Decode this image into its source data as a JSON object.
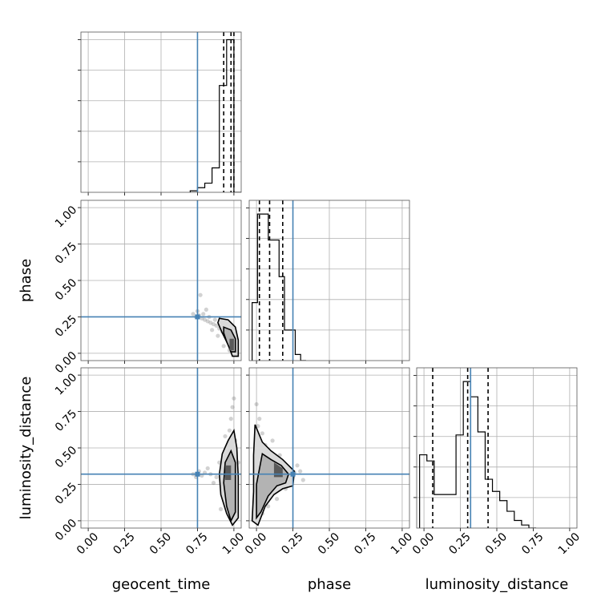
{
  "chart_data": {
    "type": "corner",
    "parameters": [
      "geocent_time",
      "phase",
      "luminosity_distance"
    ],
    "tick_labels": [
      "0.00",
      "0.25",
      "0.50",
      "0.75",
      "1.00"
    ],
    "axis_range": [
      -0.05,
      1.05
    ],
    "grid": true,
    "colors": {
      "truth": "#4682b4",
      "hist": "#000000",
      "quantile": "#000000",
      "grid": "#b0b0b0",
      "samples": "#7f7f7f"
    },
    "truths": {
      "geocent_time": 0.75,
      "phase": 0.25,
      "luminosity_distance": 0.32
    },
    "marginals": [
      {
        "parameter": "geocent_time",
        "bin_width": 0.05,
        "bins_left": [
          0.7,
          0.75,
          0.8,
          0.85,
          0.9,
          0.95,
          1.0
        ],
        "density": [
          0.01,
          0.03,
          0.06,
          0.16,
          0.7,
          1.0,
          0.0
        ],
        "ymax": 1.05,
        "quantiles": [
          0.93,
          0.98,
          1.0
        ]
      },
      {
        "parameter": "phase",
        "bin_width": 0.037,
        "bins_left": [
          -0.03,
          0.007,
          0.044,
          0.081,
          0.118,
          0.155,
          0.192,
          0.229,
          0.266,
          0.303
        ],
        "density": [
          0.38,
          0.96,
          0.96,
          0.79,
          0.79,
          0.55,
          0.2,
          0.2,
          0.04,
          0.0
        ],
        "ymax": 1.05,
        "quantiles": [
          0.02,
          0.09,
          0.18
        ]
      },
      {
        "parameter": "luminosity_distance",
        "bin_width": 0.05,
        "bins_left": [
          -0.03,
          0.02,
          0.07,
          0.12,
          0.17,
          0.22,
          0.27,
          0.32,
          0.37,
          0.42,
          0.47,
          0.52,
          0.57,
          0.62,
          0.67,
          0.72
        ],
        "density": [
          0.48,
          0.44,
          0.22,
          0.22,
          0.22,
          0.61,
          0.96,
          0.86,
          0.63,
          0.32,
          0.24,
          0.18,
          0.11,
          0.05,
          0.02,
          0.0
        ],
        "ymax": 1.05,
        "quantiles": [
          0.06,
          0.3,
          0.44
        ]
      }
    ],
    "joint": [
      {
        "x": "geocent_time",
        "y": "phase",
        "scatter": [
          [
            0.72,
            0.27
          ],
          [
            0.74,
            0.25
          ],
          [
            0.76,
            0.26
          ],
          [
            0.78,
            0.24
          ],
          [
            0.8,
            0.23
          ],
          [
            0.82,
            0.22
          ],
          [
            0.84,
            0.21
          ],
          [
            0.86,
            0.2
          ],
          [
            0.88,
            0.19
          ],
          [
            0.9,
            0.17
          ],
          [
            0.92,
            0.15
          ],
          [
            0.94,
            0.13
          ],
          [
            0.96,
            0.1
          ],
          [
            0.98,
            0.07
          ],
          [
            1.0,
            0.05
          ],
          [
            0.75,
            0.29
          ],
          [
            0.79,
            0.27
          ],
          [
            0.83,
            0.25
          ],
          [
            0.87,
            0.23
          ],
          [
            0.91,
            0.21
          ],
          [
            0.95,
            0.19
          ],
          [
            0.99,
            0.16
          ],
          [
            1.01,
            0.12
          ],
          [
            1.02,
            0.03
          ],
          [
            0.97,
            0.02
          ],
          [
            0.93,
            0.05
          ],
          [
            0.89,
            0.12
          ],
          [
            0.85,
            0.16
          ],
          [
            0.81,
            0.3
          ],
          [
            0.77,
            0.4
          ]
        ],
        "contours": [
          [
            [
              0.9,
              0.24
            ],
            [
              0.96,
              0.23
            ],
            [
              1.01,
              0.18
            ],
            [
              1.03,
              0.09
            ],
            [
              1.03,
              -0.02
            ],
            [
              0.99,
              -0.02
            ],
            [
              0.96,
              0.06
            ],
            [
              0.92,
              0.14
            ],
            [
              0.89,
              0.21
            ]
          ],
          [
            [
              0.93,
              0.18
            ],
            [
              0.98,
              0.16
            ],
            [
              1.01,
              0.1
            ],
            [
              1.01,
              0.01
            ],
            [
              0.98,
              0.01
            ],
            [
              0.95,
              0.08
            ],
            [
              0.93,
              0.14
            ]
          ]
        ],
        "core": [
          [
            0.97,
            0.1
          ],
          [
            1.0,
            0.1
          ],
          [
            1.0,
            0.02
          ],
          [
            0.97,
            0.02
          ]
        ]
      },
      {
        "x": "geocent_time",
        "y": "luminosity_distance",
        "scatter": [
          [
            0.72,
            0.32
          ],
          [
            0.74,
            0.3
          ],
          [
            0.76,
            0.34
          ],
          [
            0.78,
            0.31
          ],
          [
            0.8,
            0.33
          ],
          [
            0.84,
            0.32
          ],
          [
            0.88,
            0.3
          ],
          [
            0.92,
            0.35
          ],
          [
            0.96,
            0.28
          ],
          [
            1.0,
            0.2
          ],
          [
            0.98,
            0.7
          ],
          [
            0.99,
            0.78
          ],
          [
            1.0,
            0.84
          ],
          [
            0.97,
            0.62
          ],
          [
            1.01,
            0.55
          ],
          [
            0.95,
            0.45
          ],
          [
            1.02,
            0.1
          ],
          [
            0.99,
            0.02
          ],
          [
            0.93,
            0.22
          ],
          [
            0.9,
            0.4
          ],
          [
            0.86,
            0.26
          ],
          [
            0.82,
            0.36
          ],
          [
            0.94,
            0.58
          ],
          [
            1.03,
            0.4
          ],
          [
            0.91,
            0.08
          ]
        ],
        "contours": [
          [
            [
              0.92,
              0.46
            ],
            [
              0.96,
              0.55
            ],
            [
              1.0,
              0.62
            ],
            [
              1.02,
              0.5
            ],
            [
              1.03,
              0.3
            ],
            [
              1.03,
              0.02
            ],
            [
              0.99,
              -0.03
            ],
            [
              0.95,
              0.05
            ],
            [
              0.91,
              0.18
            ],
            [
              0.9,
              0.32
            ]
          ],
          [
            [
              0.94,
              0.4
            ],
            [
              0.98,
              0.48
            ],
            [
              1.01,
              0.4
            ],
            [
              1.01,
              0.06
            ],
            [
              0.98,
              0.0
            ],
            [
              0.95,
              0.1
            ],
            [
              0.93,
              0.26
            ]
          ]
        ],
        "core": [
          [
            0.94,
            0.38
          ],
          [
            0.98,
            0.38
          ],
          [
            0.98,
            0.28
          ],
          [
            0.94,
            0.28
          ]
        ]
      },
      {
        "x": "phase",
        "y": "luminosity_distance",
        "scatter": [
          [
            0.0,
            0.8
          ],
          [
            0.02,
            0.7
          ],
          [
            0.04,
            0.6
          ],
          [
            0.06,
            0.52
          ],
          [
            0.08,
            0.45
          ],
          [
            0.1,
            0.4
          ],
          [
            0.12,
            0.37
          ],
          [
            0.14,
            0.34
          ],
          [
            0.16,
            0.32
          ],
          [
            0.18,
            0.31
          ],
          [
            0.22,
            0.3
          ],
          [
            0.26,
            0.33
          ],
          [
            0.3,
            0.34
          ],
          [
            0.32,
            0.28
          ],
          [
            0.24,
            0.26
          ],
          [
            0.2,
            0.22
          ],
          [
            0.14,
            0.15
          ],
          [
            0.08,
            0.1
          ],
          [
            0.04,
            0.05
          ],
          [
            -0.01,
            0.0
          ],
          [
            0.03,
            0.25
          ],
          [
            0.11,
            0.55
          ],
          [
            0.01,
            0.65
          ],
          [
            0.16,
            0.45
          ],
          [
            0.28,
            0.38
          ]
        ],
        "contours": [
          [
            [
              -0.01,
              0.66
            ],
            [
              0.04,
              0.54
            ],
            [
              0.1,
              0.48
            ],
            [
              0.18,
              0.42
            ],
            [
              0.26,
              0.34
            ],
            [
              0.25,
              0.24
            ],
            [
              0.18,
              0.22
            ],
            [
              0.12,
              0.18
            ],
            [
              0.06,
              0.1
            ],
            [
              0.01,
              -0.03
            ],
            [
              -0.03,
              0.0
            ],
            [
              -0.02,
              0.2
            ],
            [
              -0.02,
              0.45
            ]
          ],
          [
            [
              0.04,
              0.46
            ],
            [
              0.1,
              0.42
            ],
            [
              0.17,
              0.38
            ],
            [
              0.22,
              0.32
            ],
            [
              0.2,
              0.26
            ],
            [
              0.14,
              0.24
            ],
            [
              0.08,
              0.17
            ],
            [
              0.03,
              0.06
            ],
            [
              0.0,
              0.02
            ],
            [
              0.0,
              0.25
            ]
          ]
        ],
        "core": [
          [
            0.12,
            0.4
          ],
          [
            0.18,
            0.36
          ],
          [
            0.18,
            0.3
          ],
          [
            0.12,
            0.3
          ]
        ]
      }
    ]
  }
}
